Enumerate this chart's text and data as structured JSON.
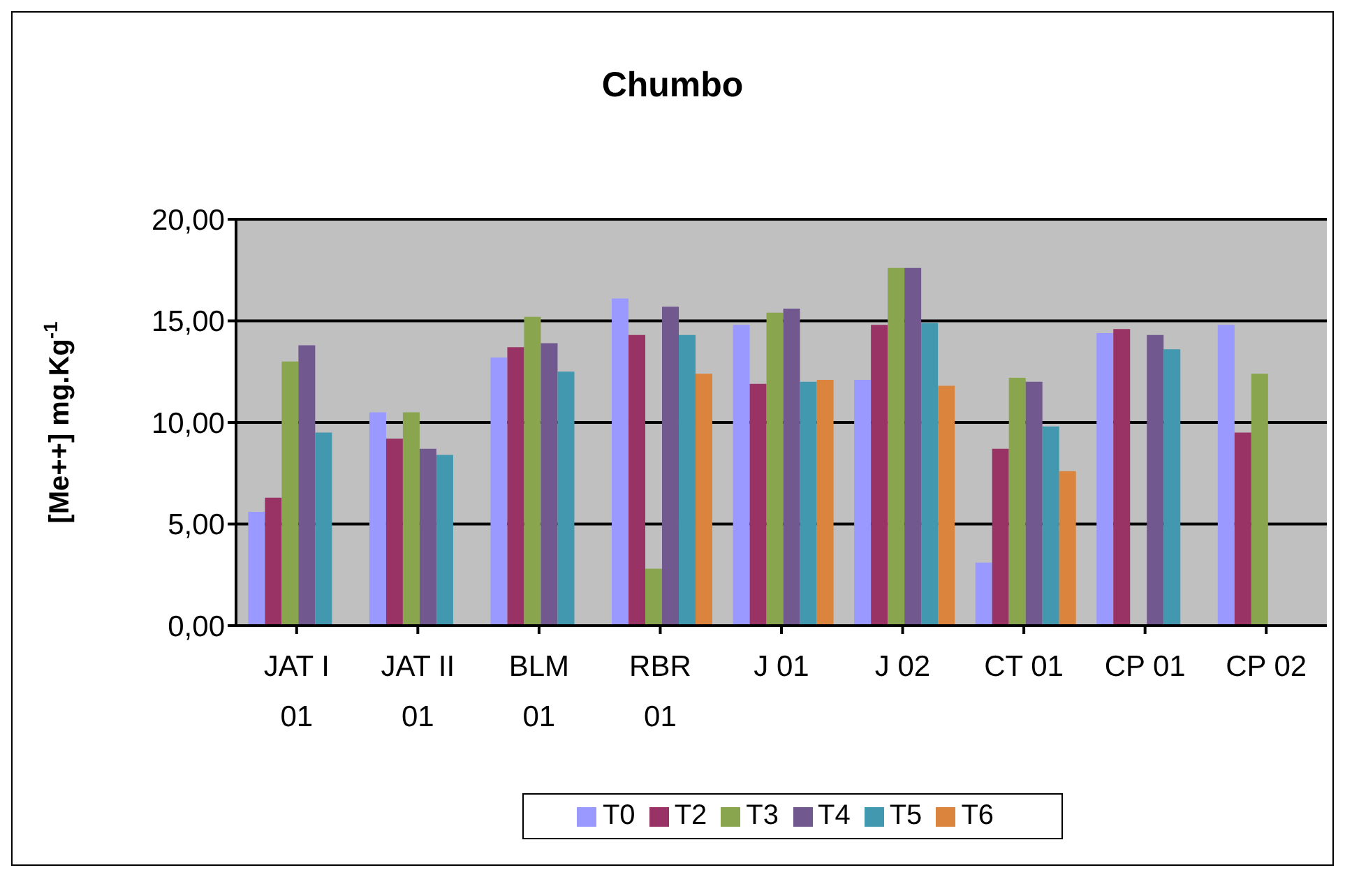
{
  "chart_data": {
    "type": "bar",
    "title": "Chumbo",
    "ylabel": "[Me++] mg.Kg$^{-1}$",
    "categories": [
      "JAT I 01",
      "JAT II 01",
      "BLM 01",
      "RBR 01",
      "J 01",
      "J 02",
      "CT 01",
      "CP 01",
      "CP 02"
    ],
    "series": [
      {
        "name": "T0",
        "color": "#9999ff",
        "values": [
          5.6,
          10.5,
          13.2,
          16.1,
          14.8,
          12.1,
          3.1,
          14.4,
          14.8
        ]
      },
      {
        "name": "T2",
        "color": "#993366",
        "values": [
          6.3,
          9.2,
          13.7,
          14.3,
          11.9,
          14.8,
          8.7,
          14.6,
          9.5
        ]
      },
      {
        "name": "T3",
        "color": "#89a54e",
        "values": [
          13.0,
          10.5,
          15.2,
          2.8,
          15.4,
          17.6,
          12.2,
          null,
          12.4
        ]
      },
      {
        "name": "T4",
        "color": "#71588f",
        "values": [
          13.8,
          8.7,
          13.9,
          15.7,
          15.6,
          17.6,
          12.0,
          14.3,
          null
        ]
      },
      {
        "name": "T5",
        "color": "#4198af",
        "values": [
          9.5,
          8.4,
          12.5,
          14.3,
          12.0,
          14.9,
          9.8,
          13.6,
          null
        ]
      },
      {
        "name": "T6",
        "color": "#db843d",
        "values": [
          null,
          null,
          null,
          12.4,
          12.1,
          11.8,
          7.6,
          null,
          null
        ]
      }
    ],
    "ylim": [
      0,
      20
    ],
    "yticks": [
      {
        "value": 0,
        "label": "0,00"
      },
      {
        "value": 5,
        "label": "5,00"
      },
      {
        "value": 10,
        "label": "10,00"
      },
      {
        "value": 15,
        "label": "15,00"
      },
      {
        "value": 20,
        "label": "20,00"
      }
    ],
    "grid": "y",
    "legend": "bottom"
  }
}
